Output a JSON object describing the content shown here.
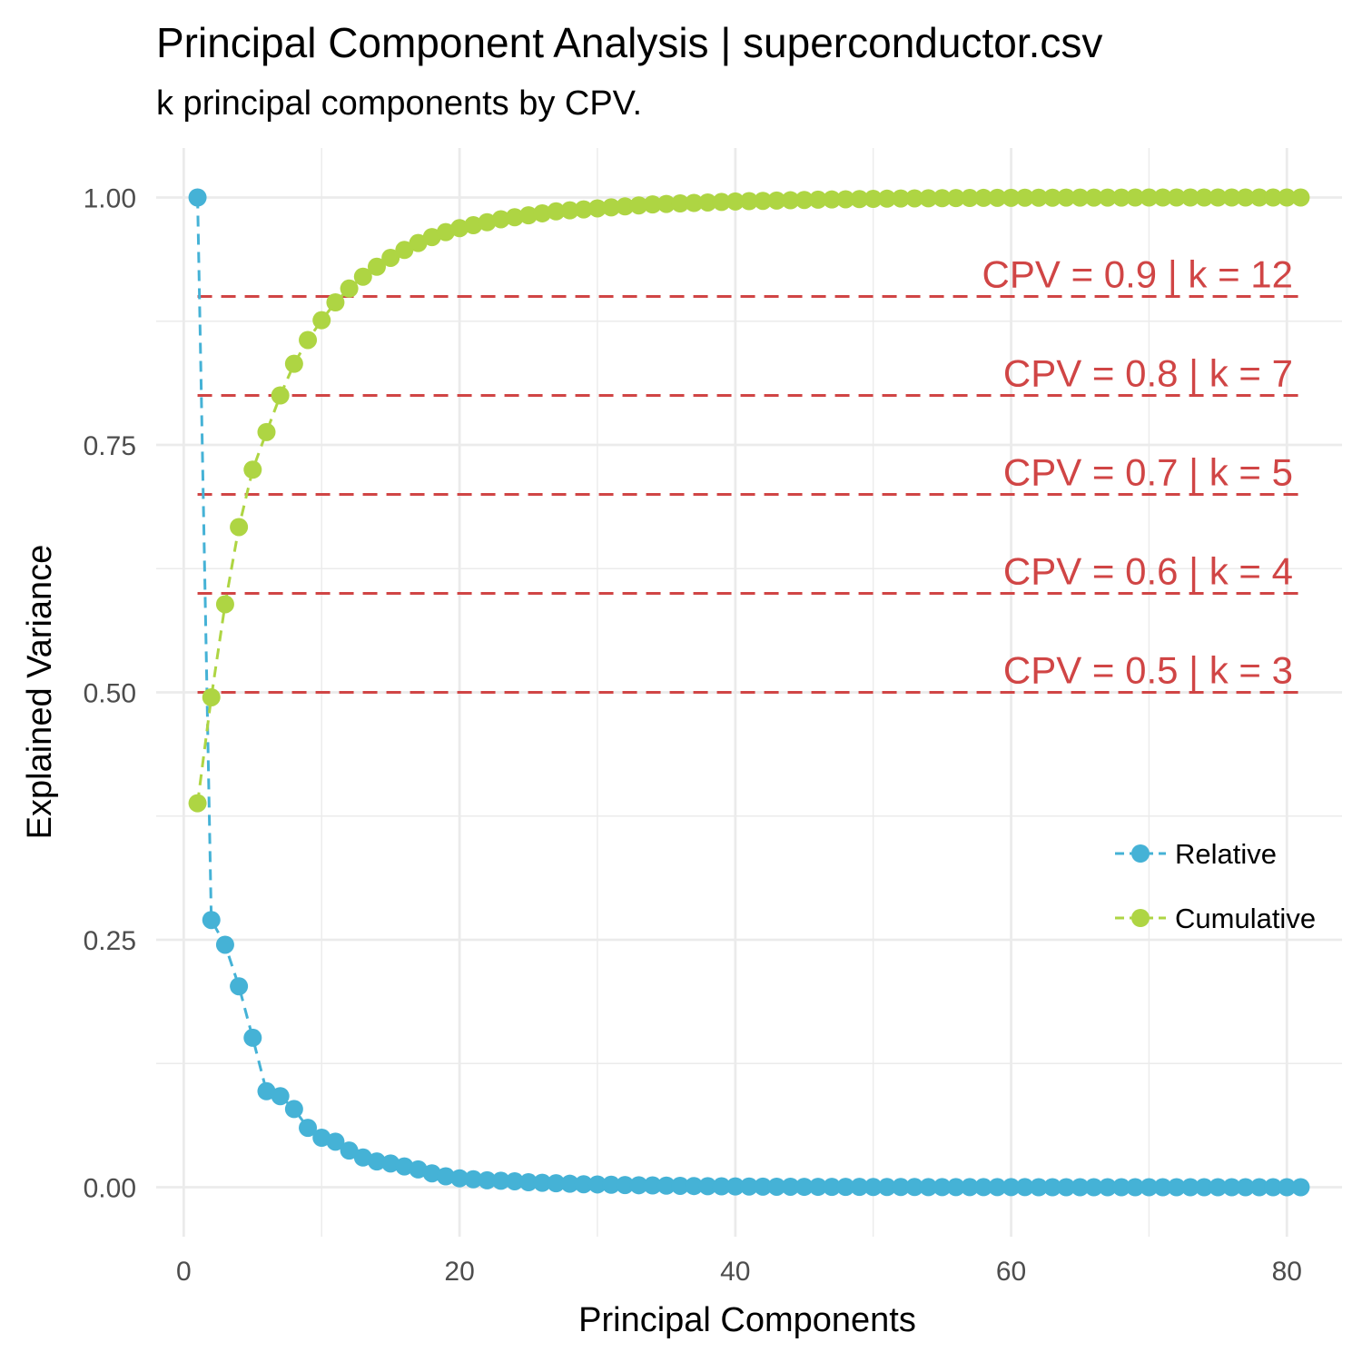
{
  "chart_data": {
    "type": "scatter",
    "title": "Principal Component Analysis | superconductor.csv",
    "subtitle": "k principal components by CPV.",
    "xlabel": "Principal Components",
    "ylabel": "Explained Variance",
    "xlim": [
      -2,
      84
    ],
    "ylim": [
      -0.05,
      1.05
    ],
    "x_ticks": [
      0,
      20,
      40,
      60,
      80
    ],
    "y_ticks": [
      0,
      0.25,
      0.5,
      0.75,
      1
    ],
    "x_tick_labels": [
      "0",
      "20",
      "40",
      "60",
      "80"
    ],
    "y_tick_labels": [
      "0.00",
      "0.25",
      "0.50",
      "0.75",
      "1.00"
    ],
    "grid": true,
    "legend_position": "right",
    "x": [
      1,
      2,
      3,
      4,
      5,
      6,
      7,
      8,
      9,
      10,
      11,
      12,
      13,
      14,
      15,
      16,
      17,
      18,
      19,
      20,
      21,
      22,
      23,
      24,
      25,
      26,
      27,
      28,
      29,
      30,
      31,
      32,
      33,
      34,
      35,
      36,
      37,
      38,
      39,
      40,
      41,
      42,
      43,
      44,
      45,
      46,
      47,
      48,
      49,
      50,
      51,
      52,
      53,
      54,
      55,
      56,
      57,
      58,
      59,
      60,
      61,
      62,
      63,
      64,
      65,
      66,
      67,
      68,
      69,
      70,
      71,
      72,
      73,
      74,
      75,
      76,
      77,
      78,
      79,
      80,
      81
    ],
    "series": [
      {
        "name": "Relative",
        "color": "#45B2D6",
        "values": [
          1.0,
          0.27,
          0.245,
          0.203,
          0.151,
          0.097,
          0.092,
          0.079,
          0.06,
          0.05,
          0.046,
          0.037,
          0.03,
          0.026,
          0.024,
          0.021,
          0.018,
          0.014,
          0.011,
          0.009,
          0.008,
          0.007,
          0.0065,
          0.006,
          0.005,
          0.0045,
          0.004,
          0.0035,
          0.003,
          0.0028,
          0.0025,
          0.0022,
          0.002,
          0.0018,
          0.0016,
          0.0014,
          0.0012,
          0.001,
          0.0009,
          0.0008,
          0.0007,
          0.0006,
          0.0005,
          0.0005,
          0.0004,
          0.0004,
          0.0003,
          0.0003,
          0.0003,
          0.0002,
          0.0002,
          0.0002,
          0.0002,
          0.0001,
          0.0001,
          0.0001,
          0.0001,
          0.0001,
          0.0001,
          0.0001,
          0.0001,
          0,
          0,
          0,
          0,
          0,
          0,
          0,
          0,
          0,
          0,
          0,
          0,
          0,
          0,
          0,
          0,
          0,
          0,
          0,
          0
        ]
      },
      {
        "name": "Cumulative",
        "color": "#AED543",
        "values": [
          0.388,
          0.495,
          0.589,
          0.667,
          0.725,
          0.763,
          0.8,
          0.832,
          0.856,
          0.876,
          0.894,
          0.908,
          0.92,
          0.93,
          0.939,
          0.947,
          0.954,
          0.96,
          0.965,
          0.969,
          0.972,
          0.975,
          0.978,
          0.98,
          0.982,
          0.984,
          0.986,
          0.987,
          0.988,
          0.989,
          0.99,
          0.991,
          0.992,
          0.993,
          0.9935,
          0.994,
          0.9945,
          0.995,
          0.9955,
          0.996,
          0.9963,
          0.9966,
          0.9969,
          0.9972,
          0.9975,
          0.9978,
          0.998,
          0.9982,
          0.9984,
          0.9986,
          0.9988,
          0.999,
          0.9991,
          0.9992,
          0.9993,
          0.9994,
          0.9995,
          0.9996,
          0.9997,
          0.9997,
          0.9998,
          0.9998,
          0.9998,
          0.9999,
          0.9999,
          0.9999,
          0.9999,
          0.9999,
          1,
          1,
          1,
          1,
          1,
          1,
          1,
          1,
          1,
          1,
          1,
          1,
          1
        ]
      }
    ],
    "threshold_color": "#D04545",
    "thresholds": [
      {
        "cpv": 0.9,
        "k": 12,
        "label": "CPV = 0.9 | k = 12"
      },
      {
        "cpv": 0.8,
        "k": 7,
        "label": "CPV = 0.8 | k = 7"
      },
      {
        "cpv": 0.7,
        "k": 5,
        "label": "CPV = 0.7 | k = 5"
      },
      {
        "cpv": 0.6,
        "k": 4,
        "label": "CPV = 0.6 | k = 4"
      },
      {
        "cpv": 0.5,
        "k": 3,
        "label": "CPV = 0.5 | k = 3"
      }
    ]
  }
}
